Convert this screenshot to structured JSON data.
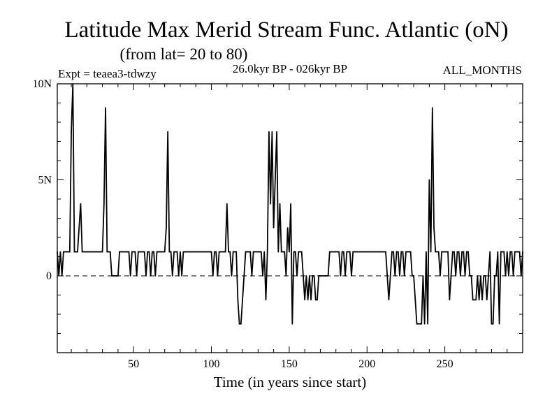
{
  "chart_data": {
    "type": "line",
    "title": "Latitude Max Merid Stream Func. Atlantic (oN)",
    "subtitle": "(from lat= 20 to 80)",
    "experiment": "Expt = teaea3-tdwzy",
    "period": "26.0kyr BP - 026kyr BP",
    "months": "ALL_MONTHS",
    "xlabel": "Time (in years since start)",
    "ylabel": "",
    "xlim": [
      1,
      300
    ],
    "ylim": [
      -4,
      10
    ],
    "x_ticks": [
      50,
      100,
      150,
      200,
      250
    ],
    "x_tick_labels": [
      "50",
      "100",
      "150",
      "200",
      "250"
    ],
    "y_ticks": [
      0,
      5,
      10
    ],
    "y_tick_labels": [
      "0",
      "5N",
      "10N"
    ],
    "zero_line": 0,
    "series": [
      {
        "name": "Latitude Max Merid Stream Func.",
        "points": [
          [
            1,
            1.25
          ],
          [
            2,
            0
          ],
          [
            3,
            1.25
          ],
          [
            4,
            0
          ],
          [
            5,
            1.25
          ],
          [
            6,
            1.25
          ],
          [
            7,
            1.25
          ],
          [
            8,
            1.25
          ],
          [
            9,
            1.25
          ],
          [
            10,
            7.5
          ],
          [
            11,
            10
          ],
          [
            12,
            1.25
          ],
          [
            13,
            1.25
          ],
          [
            14,
            1.25
          ],
          [
            15,
            2.5
          ],
          [
            16,
            3.75
          ],
          [
            17,
            1.25
          ],
          [
            18,
            1.25
          ],
          [
            19,
            1.25
          ],
          [
            20,
            1.25
          ],
          [
            21,
            1.25
          ],
          [
            22,
            1.25
          ],
          [
            23,
            1.25
          ],
          [
            24,
            1.25
          ],
          [
            25,
            1.25
          ],
          [
            26,
            1.25
          ],
          [
            27,
            1.25
          ],
          [
            28,
            1.25
          ],
          [
            29,
            1.25
          ],
          [
            30,
            1.25
          ],
          [
            31,
            3.75
          ],
          [
            32,
            8.75
          ],
          [
            33,
            1.25
          ],
          [
            34,
            1.25
          ],
          [
            35,
            1.25
          ],
          [
            36,
            0
          ],
          [
            37,
            0
          ],
          [
            38,
            0
          ],
          [
            39,
            0
          ],
          [
            40,
            0
          ],
          [
            41,
            1.25
          ],
          [
            42,
            1.25
          ],
          [
            43,
            1.25
          ],
          [
            44,
            1.25
          ],
          [
            45,
            1.25
          ],
          [
            46,
            1.25
          ],
          [
            47,
            1.25
          ],
          [
            48,
            0
          ],
          [
            49,
            1.25
          ],
          [
            50,
            1.25
          ],
          [
            51,
            1.25
          ],
          [
            52,
            0
          ],
          [
            53,
            1.25
          ],
          [
            54,
            1.25
          ],
          [
            55,
            1.25
          ],
          [
            56,
            1.25
          ],
          [
            57,
            1.25
          ],
          [
            58,
            0
          ],
          [
            59,
            1.25
          ],
          [
            60,
            1.25
          ],
          [
            61,
            0
          ],
          [
            62,
            1.25
          ],
          [
            63,
            1.25
          ],
          [
            64,
            0
          ],
          [
            65,
            1.25
          ],
          [
            66,
            1.25
          ],
          [
            67,
            1.25
          ],
          [
            68,
            1.25
          ],
          [
            69,
            1.25
          ],
          [
            70,
            1.25
          ],
          [
            71,
            2.5
          ],
          [
            72,
            7.5
          ],
          [
            73,
            1.25
          ],
          [
            74,
            1.25
          ],
          [
            75,
            0
          ],
          [
            76,
            1.25
          ],
          [
            77,
            1.25
          ],
          [
            78,
            1.25
          ],
          [
            79,
            0
          ],
          [
            80,
            1.25
          ],
          [
            81,
            0
          ],
          [
            82,
            1.25
          ],
          [
            83,
            1.25
          ],
          [
            84,
            1.25
          ],
          [
            85,
            1.25
          ],
          [
            86,
            1.25
          ],
          [
            87,
            1.25
          ],
          [
            88,
            1.25
          ],
          [
            89,
            1.25
          ],
          [
            90,
            1.25
          ],
          [
            91,
            1.25
          ],
          [
            92,
            1.25
          ],
          [
            93,
            1.25
          ],
          [
            94,
            1.25
          ],
          [
            95,
            1.25
          ],
          [
            96,
            1.25
          ],
          [
            97,
            1.25
          ],
          [
            98,
            1.25
          ],
          [
            99,
            1.25
          ],
          [
            100,
            1.25
          ],
          [
            101,
            0
          ],
          [
            102,
            1.25
          ],
          [
            103,
            1.25
          ],
          [
            104,
            0
          ],
          [
            105,
            1.25
          ],
          [
            106,
            1.25
          ],
          [
            107,
            1.25
          ],
          [
            108,
            1.25
          ],
          [
            109,
            1.25
          ],
          [
            110,
            3.75
          ],
          [
            111,
            1.25
          ],
          [
            112,
            1.25
          ],
          [
            113,
            0
          ],
          [
            114,
            1.25
          ],
          [
            115,
            1.25
          ],
          [
            116,
            1.25
          ],
          [
            117,
            -1.25
          ],
          [
            118,
            -2.5
          ],
          [
            119,
            -2.5
          ],
          [
            120,
            -1.25
          ],
          [
            121,
            0
          ],
          [
            122,
            1.25
          ],
          [
            123,
            1.25
          ],
          [
            124,
            1.25
          ],
          [
            125,
            1.25
          ],
          [
            126,
            0
          ],
          [
            127,
            1.25
          ],
          [
            128,
            1.25
          ],
          [
            129,
            1.25
          ],
          [
            130,
            1.25
          ],
          [
            131,
            1.25
          ],
          [
            132,
            1.25
          ],
          [
            133,
            0
          ],
          [
            134,
            1.25
          ],
          [
            135,
            -1.25
          ],
          [
            136,
            1.25
          ],
          [
            137,
            7.5
          ],
          [
            138,
            3.75
          ],
          [
            139,
            7.5
          ],
          [
            140,
            2.5
          ],
          [
            141,
            5
          ],
          [
            142,
            7.5
          ],
          [
            143,
            1.25
          ],
          [
            144,
            3.75
          ],
          [
            145,
            1.25
          ],
          [
            146,
            1.25
          ],
          [
            147,
            1.25
          ],
          [
            148,
            0
          ],
          [
            149,
            2.5
          ],
          [
            150,
            1.25
          ],
          [
            151,
            3.75
          ],
          [
            152,
            -2.5
          ],
          [
            153,
            1.25
          ],
          [
            154,
            1.25
          ],
          [
            155,
            0
          ],
          [
            156,
            1.25
          ],
          [
            157,
            1.25
          ],
          [
            158,
            1.25
          ],
          [
            159,
            0
          ],
          [
            160,
            -1.25
          ],
          [
            161,
            0
          ],
          [
            162,
            -1.25
          ],
          [
            163,
            0
          ],
          [
            164,
            -1.25
          ],
          [
            165,
            0
          ],
          [
            166,
            0
          ],
          [
            167,
            -1.25
          ],
          [
            168,
            -1.25
          ],
          [
            169,
            0
          ],
          [
            170,
            0
          ],
          [
            171,
            0
          ],
          [
            172,
            0
          ],
          [
            173,
            0
          ],
          [
            174,
            0
          ],
          [
            175,
            0
          ],
          [
            176,
            1.25
          ],
          [
            177,
            1.25
          ],
          [
            178,
            1.25
          ],
          [
            179,
            1.25
          ],
          [
            180,
            1.25
          ],
          [
            181,
            1.25
          ],
          [
            182,
            1.25
          ],
          [
            183,
            0
          ],
          [
            184,
            1.25
          ],
          [
            185,
            1.25
          ],
          [
            186,
            0
          ],
          [
            187,
            1.25
          ],
          [
            188,
            1.25
          ],
          [
            189,
            1.25
          ],
          [
            190,
            0
          ],
          [
            191,
            1.25
          ],
          [
            192,
            1.25
          ],
          [
            193,
            1.25
          ],
          [
            194,
            1.25
          ],
          [
            195,
            1.25
          ],
          [
            196,
            1.25
          ],
          [
            197,
            1.25
          ],
          [
            198,
            1.25
          ],
          [
            199,
            1.25
          ],
          [
            200,
            1.25
          ],
          [
            201,
            1.25
          ],
          [
            202,
            1.25
          ],
          [
            203,
            1.25
          ],
          [
            204,
            1.25
          ],
          [
            205,
            1.25
          ],
          [
            206,
            1.25
          ],
          [
            207,
            1.25
          ],
          [
            208,
            1.25
          ],
          [
            209,
            1.25
          ],
          [
            210,
            1.25
          ],
          [
            211,
            1.25
          ],
          [
            212,
            1.25
          ],
          [
            213,
            0
          ],
          [
            214,
            -1.25
          ],
          [
            215,
            0
          ],
          [
            216,
            1.25
          ],
          [
            217,
            1.25
          ],
          [
            218,
            0
          ],
          [
            219,
            1.25
          ],
          [
            220,
            1.25
          ],
          [
            221,
            0
          ],
          [
            222,
            1.25
          ],
          [
            223,
            1.25
          ],
          [
            224,
            0
          ],
          [
            225,
            1.25
          ],
          [
            226,
            1.25
          ],
          [
            227,
            1.25
          ],
          [
            228,
            1.25
          ],
          [
            229,
            0
          ],
          [
            230,
            0
          ],
          [
            231,
            -1.25
          ],
          [
            232,
            -2.5
          ],
          [
            233,
            -2.5
          ],
          [
            234,
            -2.5
          ],
          [
            235,
            -2.5
          ],
          [
            236,
            0
          ],
          [
            237,
            -2.5
          ],
          [
            238,
            1.25
          ],
          [
            239,
            -2.5
          ],
          [
            240,
            5
          ],
          [
            241,
            1.25
          ],
          [
            242,
            8.75
          ],
          [
            243,
            2.5
          ],
          [
            244,
            1.25
          ],
          [
            245,
            1.25
          ],
          [
            246,
            1.25
          ],
          [
            247,
            0
          ],
          [
            248,
            1.25
          ],
          [
            249,
            1.25
          ],
          [
            250,
            1.25
          ],
          [
            251,
            1.25
          ],
          [
            252,
            1.25
          ],
          [
            253,
            -1.25
          ],
          [
            254,
            0
          ],
          [
            255,
            1.25
          ],
          [
            256,
            1.25
          ],
          [
            257,
            0
          ],
          [
            258,
            1.25
          ],
          [
            259,
            1.25
          ],
          [
            260,
            0
          ],
          [
            261,
            1.25
          ],
          [
            262,
            1.25
          ],
          [
            263,
            0
          ],
          [
            264,
            1.25
          ],
          [
            265,
            1.25
          ],
          [
            266,
            0
          ],
          [
            267,
            0
          ],
          [
            268,
            -1.25
          ],
          [
            269,
            -1.25
          ],
          [
            270,
            -1.25
          ],
          [
            271,
            0
          ],
          [
            272,
            -1.25
          ],
          [
            273,
            0
          ],
          [
            274,
            -1.25
          ],
          [
            275,
            0
          ],
          [
            276,
            0
          ],
          [
            277,
            -1.25
          ],
          [
            278,
            0
          ],
          [
            279,
            1.25
          ],
          [
            280,
            -2.5
          ],
          [
            281,
            -2.5
          ],
          [
            282,
            0
          ],
          [
            283,
            0
          ],
          [
            284,
            1.25
          ],
          [
            285,
            -2.5
          ],
          [
            286,
            1.25
          ],
          [
            287,
            1.25
          ],
          [
            288,
            1.25
          ],
          [
            289,
            0
          ],
          [
            290,
            1.25
          ],
          [
            291,
            0
          ],
          [
            292,
            1.25
          ],
          [
            293,
            1.25
          ],
          [
            294,
            0
          ],
          [
            295,
            1.25
          ],
          [
            296,
            1.25
          ],
          [
            297,
            1.25
          ],
          [
            298,
            1.25
          ],
          [
            299,
            0
          ],
          [
            300,
            1.25
          ]
        ]
      }
    ]
  }
}
